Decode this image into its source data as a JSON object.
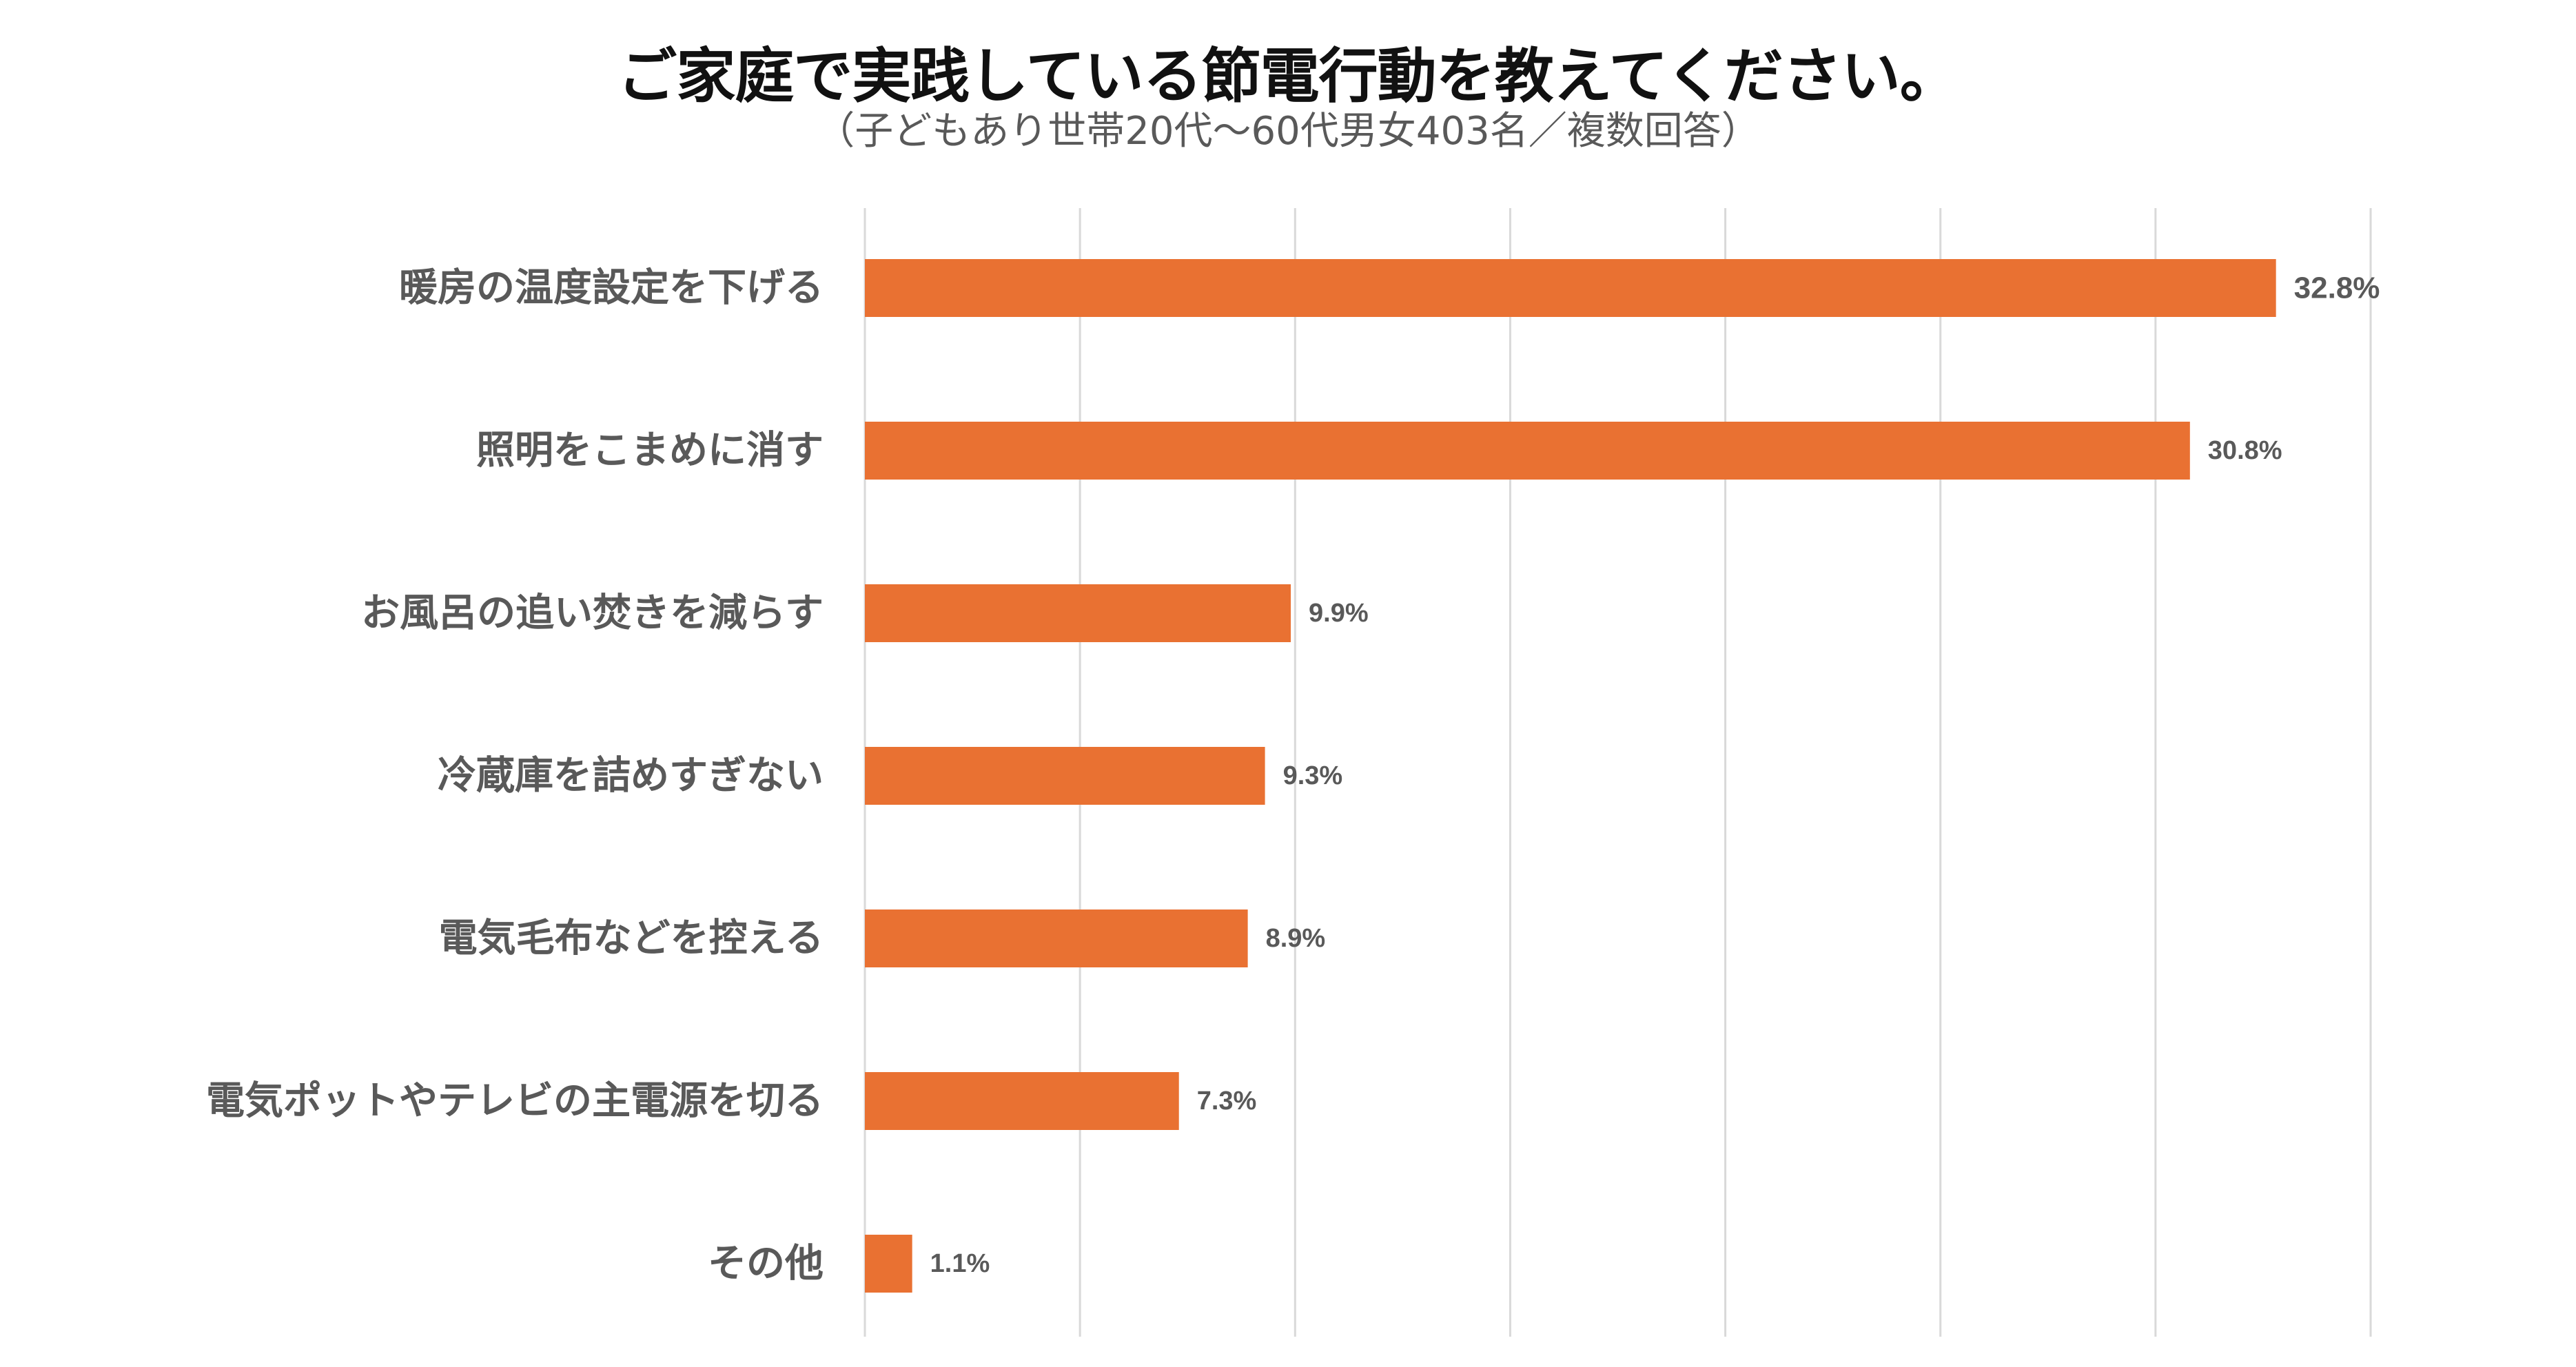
{
  "title": "ご家庭で実践している節電行動を教えてください。",
  "subtitle": "（子どもあり世帯20代～60代男女403名／複数回答）",
  "colors": {
    "bar": "#E97132",
    "grid": "#D9D9D9",
    "category_text": "#595959",
    "value_text": "#595959"
  },
  "chart_data": {
    "type": "bar",
    "orientation": "horizontal",
    "title": "ご家庭で実践している節電行動を教えてください。",
    "subtitle": "（子どもあり世帯20代～60代男女403名／複数回答）",
    "categories": [
      "暖房の温度設定を下げる",
      "照明をこまめに消す",
      "お風呂の追い焚きを減らす",
      "冷蔵庫を詰めすぎない",
      "電気毛布などを控える",
      "電気ポットやテレビの主電源を切る",
      "その他"
    ],
    "values": [
      32.8,
      30.8,
      9.9,
      9.3,
      8.9,
      7.3,
      1.1
    ],
    "value_labels": [
      "32.8%",
      "30.8%",
      "9.9%",
      "9.3%",
      "8.9%",
      "7.3%",
      "1.1%"
    ],
    "unit": "%",
    "xlim": [
      0,
      35
    ],
    "grid_step": 5,
    "grid": true,
    "legend": "none"
  }
}
